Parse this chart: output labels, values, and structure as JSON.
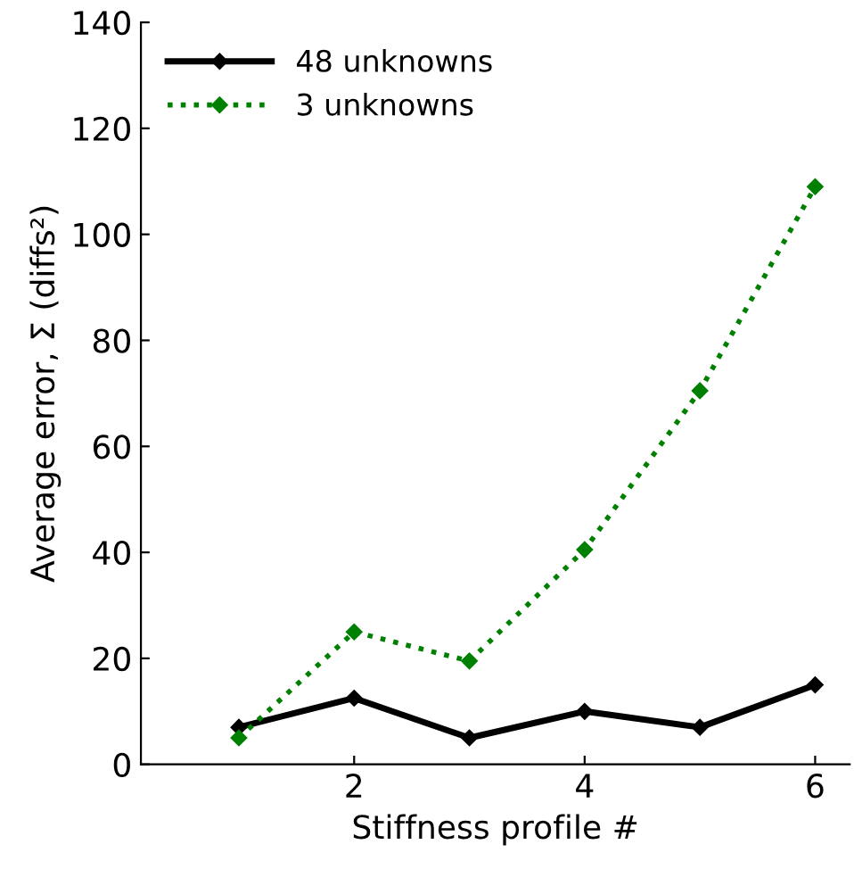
{
  "chart_data": {
    "type": "line",
    "xlabel": "Stiffness profile #",
    "ylabel": "Average error, Σ (diffs²)",
    "x": [
      1,
      2,
      3,
      4,
      5,
      6
    ],
    "series": [
      {
        "name": "48 unknowns",
        "color": "#000000",
        "values": [
          7,
          12.5,
          5,
          10,
          7,
          15
        ],
        "line_style": "solid",
        "marker": "diamond"
      },
      {
        "name": "3 unknowns",
        "color": "#008000",
        "values": [
          5,
          25,
          19.5,
          40.5,
          70.5,
          109
        ],
        "line_style": "dotted",
        "marker": "diamond"
      }
    ],
    "xlim": [
      0.15,
      6.3
    ],
    "xticks": [
      2,
      4,
      6
    ],
    "ylim": [
      0,
      140
    ],
    "yticks": [
      0,
      20,
      40,
      60,
      80,
      100,
      120,
      140
    ],
    "legend": "top left",
    "grid": false
  }
}
